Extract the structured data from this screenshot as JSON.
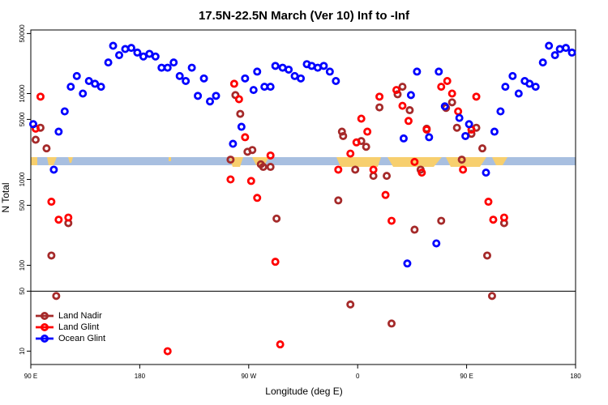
{
  "chart_data": {
    "type": "scatter",
    "title": "17.5N-22.5N March (Ver 10)   Inf to -Inf",
    "x_label": "Longitude (deg E)",
    "y_label": "N Total",
    "log_y": true,
    "xlim": [
      90,
      540
    ],
    "xticks": [
      {
        "value": 90,
        "label": "90 E"
      },
      180,
      {
        "value": 270,
        "label": "90 W"
      },
      {
        "value": 360,
        "label": "0"
      },
      {
        "value": 450,
        "label": "90 E"
      },
      {
        "value": 540,
        "label": "180"
      }
    ],
    "ylim": [
      7,
      55000
    ],
    "yticks": [
      10,
      50,
      100,
      500,
      1000,
      5000,
      10000,
      50000
    ],
    "reference_line": 50,
    "legend": "bottom-left",
    "series": [
      {
        "name": "Land Nadir",
        "color": "#a52a2a",
        "x": [
          94,
          98,
          103,
          107,
          111,
          121,
          255,
          259,
          263,
          269,
          273,
          280,
          282,
          288,
          293,
          344,
          347,
          348,
          354,
          358,
          363,
          367,
          373,
          378,
          384,
          388,
          393,
          397,
          403,
          407,
          412,
          417,
          429,
          433,
          438,
          442,
          446,
          454,
          458,
          463,
          467,
          471,
          481
        ],
        "values": [
          2900,
          4000,
          2300,
          130,
          44,
          310,
          1700,
          9600,
          5800,
          2100,
          2200,
          1500,
          1400,
          1400,
          350,
          570,
          3600,
          3200,
          35,
          1300,
          2800,
          2400,
          1100,
          6900,
          1100,
          21,
          9800,
          12000,
          6400,
          260,
          1300,
          3900,
          330,
          6800,
          7900,
          4000,
          1700,
          3400,
          4000,
          2300,
          130,
          44,
          310
        ]
      },
      {
        "name": "Land Glint",
        "color": "#ff0000",
        "x": [
          94,
          98,
          107,
          113,
          121,
          203,
          255,
          258,
          262,
          267,
          272,
          277,
          288,
          292,
          296,
          344,
          354,
          359,
          363,
          368,
          373,
          378,
          383,
          388,
          392,
          397,
          402,
          407,
          413,
          417,
          429,
          434,
          438,
          443,
          447,
          454,
          458,
          468,
          472,
          481
        ],
        "values": [
          3900,
          9200,
          550,
          340,
          360,
          10,
          1000,
          13000,
          8600,
          3100,
          960,
          610,
          1900,
          110,
          12,
          1300,
          2000,
          2700,
          5100,
          3600,
          1300,
          9200,
          660,
          330,
          11000,
          7200,
          4800,
          1600,
          1200,
          3800,
          12000,
          14000,
          10000,
          6200,
          1300,
          3800,
          9200,
          550,
          340,
          360
        ]
      },
      {
        "name": "Ocean Glint",
        "color": "#0000ff",
        "x": [
          92,
          109,
          113,
          118,
          123,
          128,
          133,
          138,
          143,
          148,
          154,
          158,
          163,
          168,
          173,
          178,
          183,
          188,
          193,
          198,
          203,
          208,
          213,
          218,
          223,
          228,
          233,
          238,
          243,
          257,
          264,
          267,
          274,
          277,
          283,
          288,
          292,
          298,
          303,
          308,
          313,
          318,
          322,
          327,
          332,
          337,
          342,
          398,
          401,
          404,
          409,
          419,
          425,
          427,
          432,
          444,
          449,
          452,
          466,
          473,
          478,
          482,
          488,
          493,
          498,
          502,
          507,
          513,
          518,
          523,
          527,
          532,
          537
        ],
        "values": [
          4400,
          1300,
          3600,
          6200,
          12000,
          16000,
          10000,
          14000,
          13000,
          12000,
          23000,
          36000,
          28000,
          33000,
          34000,
          30000,
          27000,
          29000,
          27000,
          20000,
          20000,
          23000,
          16000,
          14000,
          20000,
          9400,
          15000,
          8100,
          9400,
          2600,
          4100,
          15000,
          11000,
          18000,
          12000,
          12000,
          21000,
          20000,
          19000,
          16000,
          15000,
          22000,
          21000,
          20000,
          21000,
          18000,
          14000,
          3000,
          105,
          9600,
          18000,
          3100,
          180,
          18000,
          7100,
          5200,
          3200,
          4400,
          1200,
          3600,
          6200,
          12000,
          16000,
          10000,
          14000,
          13000,
          12000,
          23000,
          36000,
          28000,
          33000,
          34000,
          30000
        ]
      }
    ]
  }
}
